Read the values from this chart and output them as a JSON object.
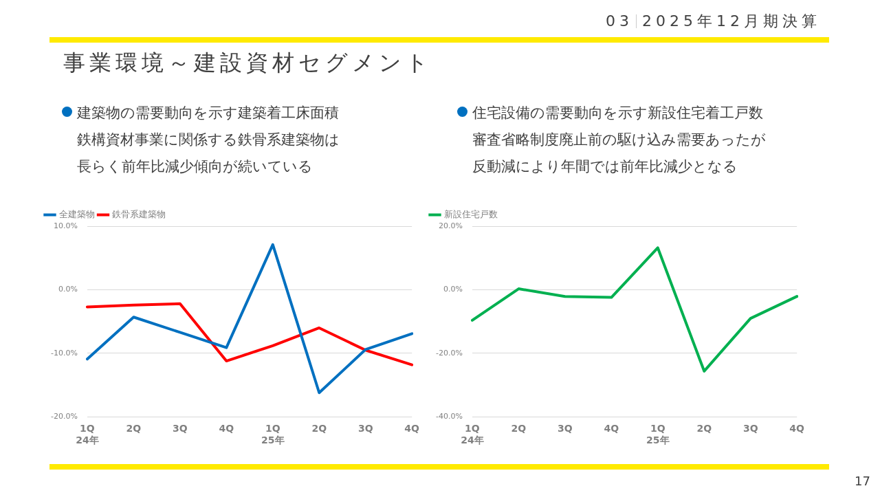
{
  "chart_data": [
    {
      "type": "line",
      "title": "建築物の需要動向を示す建築着工床面積",
      "subtitle": "鉄構資材事業に関係する鉄骨系建築物は長らく前年比減少傾向が続いている",
      "annotations": [
        "03",
        "2025年12月期決算",
        "事業環境～建設資材セグメント",
        "17"
      ],
      "categories": [
        "1Q\n24年",
        "2Q",
        "3Q",
        "4Q",
        "1Q\n25年",
        "2Q",
        "3Q",
        "4Q"
      ],
      "series": [
        {
          "name": "全建築物",
          "color": "#0070c0",
          "values": [
            -10.9,
            -4.3,
            -6.7,
            -9.1,
            7.1,
            -16.2,
            -9.4,
            -6.9
          ]
        },
        {
          "name": "鉄骨系建築物",
          "color": "#ff0000",
          "values": [
            -2.7,
            -2.4,
            -2.2,
            -11.2,
            -8.8,
            -6.0,
            -9.5,
            -11.8
          ]
        }
      ],
      "ylim": [
        -20,
        10
      ],
      "yticks": [
        {
          "value": -20,
          "label": "-20.0%"
        },
        {
          "value": -10,
          "label": "-10.0%"
        },
        {
          "value": 0,
          "label": "0.0%"
        },
        {
          "value": 10,
          "label": "10.0%"
        }
      ],
      "grid": "y",
      "legend": "top left",
      "marker": "none",
      "line_style": "solid"
    },
    {
      "type": "line",
      "title": "住宅設備の需要動向を示す新設住宅着工戸数",
      "subtitle": "審査省略制度廃止前の駆け込み需要あったが反動減により年間では前年比減少となる",
      "categories": [
        "1Q\n24年",
        "2Q",
        "3Q",
        "4Q",
        "1Q\n25年",
        "2Q",
        "3Q",
        "4Q"
      ],
      "series": [
        {
          "name": "新設住宅戸数",
          "color": "#00b050",
          "values": [
            -9.6,
            0.3,
            -2.1,
            -2.4,
            13.2,
            -25.6,
            -9.0,
            -2.1
          ]
        }
      ],
      "ylim": [
        -40,
        20
      ],
      "yticks": [
        {
          "value": -40,
          "label": "-40.0%"
        },
        {
          "value": -20,
          "label": "-20.0%"
        },
        {
          "value": 0,
          "label": "0.0%"
        },
        {
          "value": 20,
          "label": "20.0%"
        }
      ],
      "grid": "y",
      "legend": "top left",
      "marker": "none",
      "line_style": "solid"
    }
  ]
}
